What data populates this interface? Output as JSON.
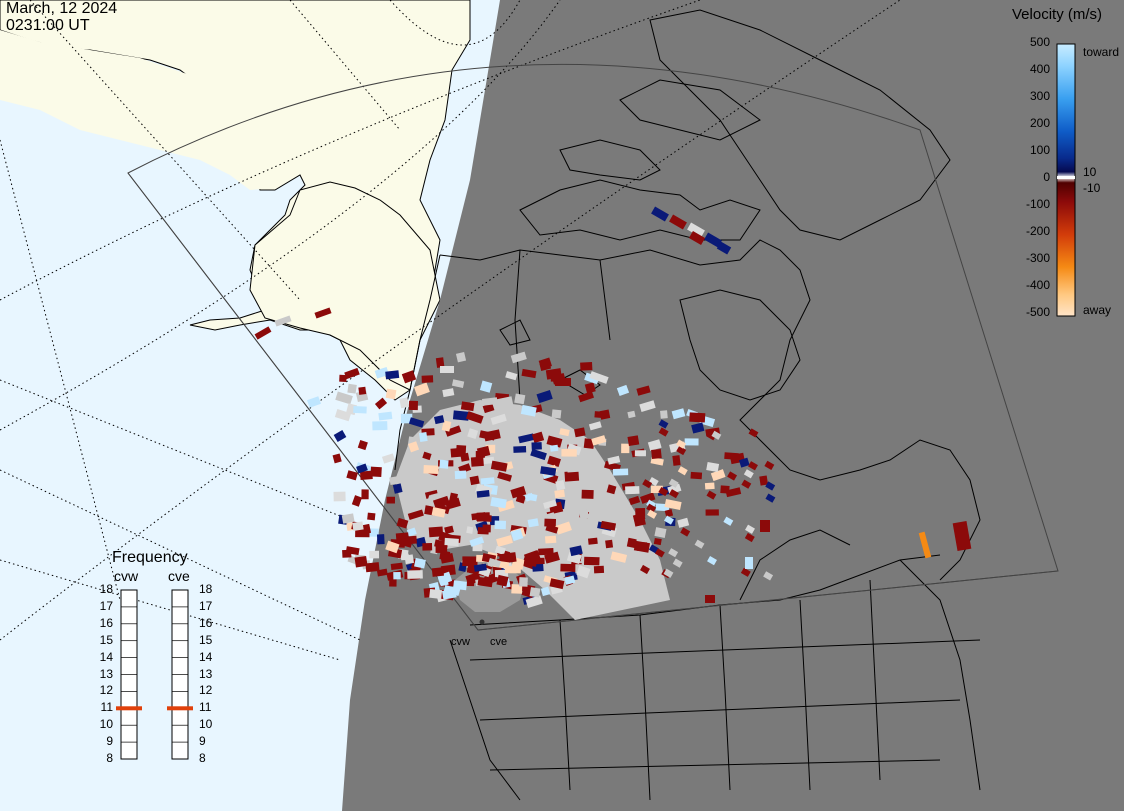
{
  "header": {
    "date": "March, 12 2024",
    "time": "0231:00 UT"
  },
  "colors": {
    "ocean": "#e8f6ff",
    "land_day": "#fbfbe8",
    "night": "#7a7a7a",
    "scatter_gray": "#c9c9c9",
    "freq_marker": "#e0400a"
  },
  "velocity_scale": {
    "title": "Velocity (m/s)",
    "ticks": [
      "500",
      "400",
      "300",
      "200",
      "100",
      "0",
      "-100",
      "-200",
      "-300",
      "-400",
      "-500"
    ],
    "small_pos": "10",
    "small_neg": "-10",
    "toward_label": "toward",
    "away_label": "away"
  },
  "frequency_panel": {
    "title": "Frequency",
    "radars": [
      {
        "name": "cvw",
        "selected": "11"
      },
      {
        "name": "cve",
        "selected": "11"
      }
    ],
    "values": [
      "18",
      "17",
      "16",
      "15",
      "14",
      "13",
      "12",
      "11",
      "10",
      "9",
      "8"
    ]
  },
  "sites": [
    {
      "name": "cvw"
    },
    {
      "name": "cve"
    }
  ]
}
